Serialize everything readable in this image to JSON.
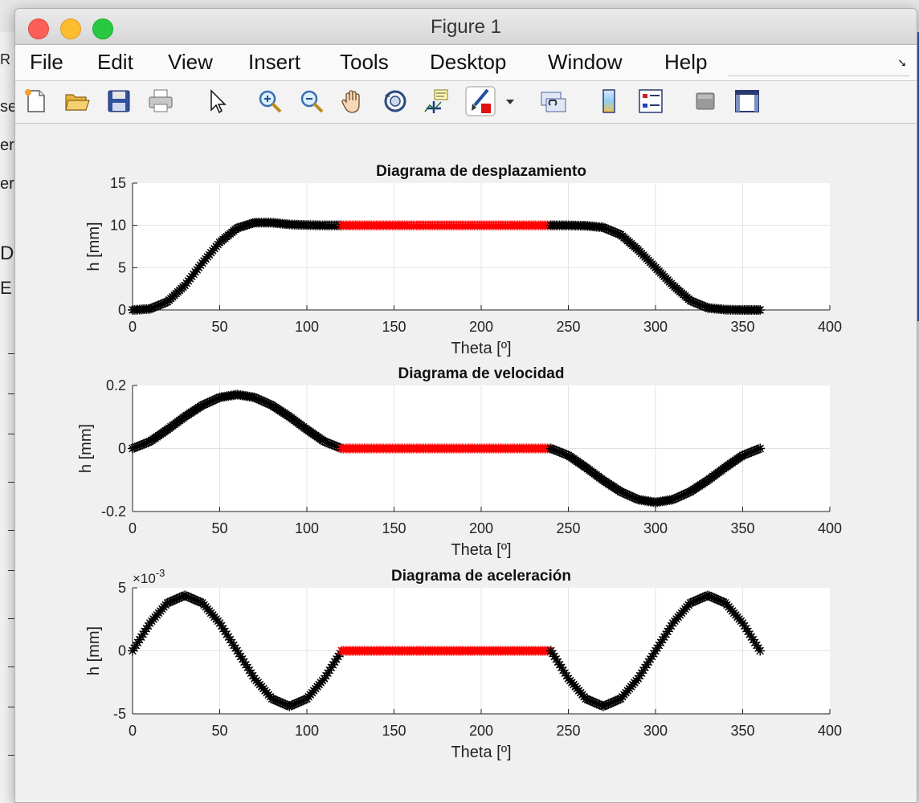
{
  "window": {
    "title": "Figure 1"
  },
  "menu": [
    "File",
    "Edit",
    "View",
    "Insert",
    "Tools",
    "Desktop",
    "Window",
    "Help"
  ],
  "background_fragments": [
    "R",
    "se",
    "er",
    "er",
    "De",
    "E"
  ],
  "toolbar": [
    {
      "name": "new-figure-icon"
    },
    {
      "name": "open-file-icon"
    },
    {
      "name": "save-icon"
    },
    {
      "name": "print-icon"
    },
    {
      "name": "pointer-arrow-icon"
    },
    {
      "name": "zoom-in-icon"
    },
    {
      "name": "zoom-out-icon"
    },
    {
      "name": "pan-hand-icon"
    },
    {
      "name": "rotate-3d-icon"
    },
    {
      "name": "data-cursor-icon"
    },
    {
      "name": "brush-icon"
    },
    {
      "name": "brush-dropdown-icon"
    },
    {
      "name": "link-plot-icon"
    },
    {
      "name": "colorbar-icon"
    },
    {
      "name": "legend-icon"
    },
    {
      "name": "hide-plot-tools-icon"
    },
    {
      "name": "show-plot-tools-icon"
    }
  ],
  "colors": {
    "active_series": "#000000",
    "dwell_series": "#ff0000",
    "grid": "#e3e3e3"
  },
  "chart_data": [
    {
      "type": "scatter",
      "title": "Diagrama de desplazamiento",
      "xlabel": "Theta [º]",
      "ylabel": "h [mm]",
      "xlim": [
        0,
        400
      ],
      "ylim": [
        0,
        15
      ],
      "xticks": [
        0,
        50,
        100,
        150,
        200,
        250,
        300,
        350,
        400
      ],
      "yticks": [
        0,
        5,
        10,
        15
      ],
      "grid": true,
      "marker": "*",
      "series": [
        {
          "color": "black",
          "x": [
            0,
            10,
            20,
            30,
            40,
            50,
            60,
            70,
            80,
            90,
            100,
            110,
            120
          ],
          "y": [
            0,
            0.13,
            0.97,
            2.9,
            5.55,
            7.99,
            9.68,
            10.33,
            10.32,
            10.11,
            10.04,
            10.0,
            10.0
          ]
        },
        {
          "color": "red",
          "x": [
            120,
            240
          ],
          "y": [
            10,
            10
          ]
        },
        {
          "color": "black",
          "x": [
            240,
            250,
            260,
            270,
            280,
            290,
            300,
            310,
            320,
            330,
            340,
            350,
            360
          ],
          "y": [
            10,
            10.0,
            9.96,
            9.76,
            8.9,
            7.1,
            5.0,
            2.9,
            1.1,
            0.24,
            0.04,
            0,
            0
          ]
        }
      ]
    },
    {
      "type": "scatter",
      "title": "Diagrama de velocidad",
      "xlabel": "Theta [º]",
      "ylabel": "h [mm]",
      "xlim": [
        0,
        400
      ],
      "ylim": [
        -0.2,
        0.2
      ],
      "xticks": [
        0,
        50,
        100,
        150,
        200,
        250,
        300,
        350,
        400
      ],
      "yticks": [
        -0.2,
        0,
        0.2
      ],
      "grid": true,
      "marker": "*",
      "series": [
        {
          "color": "black",
          "x": [
            0,
            10,
            20,
            30,
            40,
            50,
            60,
            70,
            80,
            90,
            100,
            110,
            120
          ],
          "y": [
            0,
            0.022,
            0.06,
            0.101,
            0.137,
            0.162,
            0.171,
            0.162,
            0.137,
            0.101,
            0.06,
            0.022,
            0
          ]
        },
        {
          "color": "red",
          "x": [
            120,
            240
          ],
          "y": [
            0,
            0
          ]
        },
        {
          "color": "black",
          "x": [
            240,
            250,
            260,
            270,
            280,
            290,
            300,
            310,
            320,
            330,
            340,
            350,
            360
          ],
          "y": [
            0,
            -0.022,
            -0.06,
            -0.101,
            -0.137,
            -0.162,
            -0.171,
            -0.162,
            -0.137,
            -0.101,
            -0.06,
            -0.022,
            0
          ]
        }
      ]
    },
    {
      "type": "scatter",
      "title": "Diagrama de aceleración",
      "xlabel": "Theta [º]",
      "ylabel": "h [mm]",
      "y_exponent": "×10-3",
      "xlim": [
        0,
        400
      ],
      "ylim": [
        -5,
        5
      ],
      "xticks": [
        0,
        50,
        100,
        150,
        200,
        250,
        300,
        350,
        400
      ],
      "yticks": [
        -5,
        0,
        5
      ],
      "grid": true,
      "marker": "*",
      "series": [
        {
          "color": "black",
          "x": [
            0,
            10,
            20,
            30,
            40,
            50,
            60,
            70,
            80,
            90,
            100,
            110,
            120
          ],
          "y": [
            0,
            2.2,
            3.8,
            4.4,
            3.8,
            2.2,
            0,
            -2.2,
            -3.8,
            -4.4,
            -3.8,
            -2.2,
            0
          ]
        },
        {
          "color": "red",
          "x": [
            120,
            240
          ],
          "y": [
            0,
            0
          ]
        },
        {
          "color": "black",
          "x": [
            240,
            250,
            260,
            270,
            280,
            290,
            300,
            310,
            320,
            330,
            340,
            350,
            360
          ],
          "y": [
            0,
            -2.2,
            -3.8,
            -4.4,
            -3.8,
            -2.2,
            0,
            2.2,
            3.8,
            4.4,
            3.8,
            2.2,
            0
          ]
        }
      ]
    }
  ]
}
